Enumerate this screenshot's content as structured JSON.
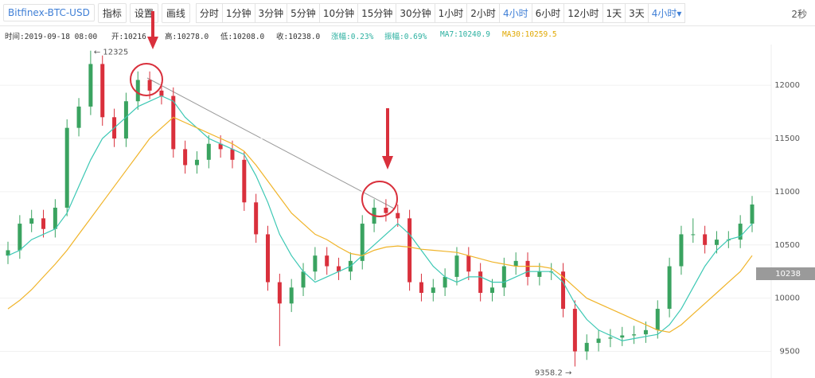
{
  "toolbar": {
    "symbol": "Bitfinex-BTC-USD",
    "buttons": [
      "指标",
      "设置",
      "画线"
    ],
    "intervals": [
      "分时",
      "1分钟",
      "3分钟",
      "5分钟",
      "10分钟",
      "15分钟",
      "30分钟",
      "1小时",
      "2小时",
      "4小时",
      "6小时",
      "12小时",
      "1天",
      "3天"
    ],
    "active_interval": 9,
    "period_select": "4小时▾",
    "refresh": "2秒"
  },
  "info": [
    "时间:2019-09-18 08:00",
    "开:10216",
    "高:10278.0",
    "低:10208.0",
    "收:10238.0",
    "涨幅:0.23%",
    "振幅:0.69%",
    "MA7:10240.9",
    "MA30:10259.5"
  ],
  "chart_data": {
    "type": "candlestick",
    "up_color": "#3aa360",
    "down_color": "#d9303c",
    "open": [
      10400,
      10450,
      10700,
      10750,
      10650,
      10850,
      11600,
      11800,
      12200,
      11700,
      11500,
      11850,
      12050,
      11950,
      11900,
      11400,
      11250,
      11300,
      11450,
      11400,
      11300,
      10900,
      10600,
      10150,
      9950,
      10100,
      10250,
      10400,
      10300,
      10250,
      10350,
      10700,
      10850,
      10800,
      10750,
      10150,
      10050,
      10100,
      10200,
      10400,
      10250,
      10050,
      10100,
      10300,
      10350,
      10200,
      10250,
      10250,
      9900,
      9500,
      9580,
      9620,
      9630,
      9650,
      9660,
      9700,
      9900,
      10300,
      10600,
      10600,
      10500,
      10550,
      10550,
      10700
    ],
    "high": [
      10530,
      10780,
      10830,
      10830,
      10930,
      11680,
      11880,
      12325,
      12280,
      11780,
      11930,
      12130,
      12130,
      12030,
      11980,
      11480,
      11380,
      11530,
      11530,
      11480,
      11380,
      10980,
      10680,
      10230,
      10180,
      10330,
      10480,
      10480,
      10380,
      10430,
      10780,
      10930,
      10930,
      10880,
      10830,
      10230,
      10180,
      10280,
      10480,
      10480,
      10330,
      10180,
      10380,
      10430,
      10430,
      10330,
      10330,
      10330,
      9980,
      9660,
      9700,
      9710,
      9730,
      9740,
      9780,
      9980,
      10380,
      10680,
      10750,
      10680,
      10630,
      10630,
      10780,
      10960
    ],
    "low": [
      10320,
      10370,
      10620,
      10570,
      10570,
      10770,
      11520,
      11720,
      11620,
      11420,
      11420,
      11770,
      11870,
      11820,
      11320,
      11170,
      11170,
      11220,
      11320,
      11220,
      10820,
      10520,
      10070,
      9550,
      9870,
      10020,
      10170,
      10220,
      10170,
      10170,
      10270,
      10620,
      10720,
      10670,
      10070,
      9970,
      9970,
      10020,
      10120,
      10170,
      9970,
      9970,
      10020,
      10220,
      10120,
      10120,
      10170,
      9820,
      9358.2,
      9420,
      9500,
      9540,
      9550,
      9570,
      9580,
      9620,
      9820,
      10220,
      10520,
      10420,
      10420,
      10470,
      10470,
      10620
    ],
    "close": [
      10450,
      10700,
      10750,
      10650,
      10850,
      11600,
      11800,
      12200,
      11700,
      11500,
      11850,
      12050,
      11950,
      11900,
      11400,
      11250,
      11300,
      11450,
      11400,
      11300,
      10900,
      10600,
      10150,
      9950,
      10100,
      10250,
      10400,
      10300,
      10250,
      10350,
      10700,
      10850,
      10800,
      10750,
      10150,
      10050,
      10100,
      10200,
      10400,
      10250,
      10050,
      10100,
      10300,
      10350,
      10200,
      10250,
      10250,
      9900,
      9500,
      9580,
      9620,
      9630,
      9650,
      9660,
      9700,
      9900,
      10300,
      10600,
      10600,
      10500,
      10550,
      10550,
      10700,
      10880
    ],
    "series": [
      {
        "color": "#3cc8b4",
        "values": [
          10400,
          10450,
          10550,
          10600,
          10650,
          10800,
          11050,
          11300,
          11500,
          11600,
          11700,
          11800,
          11850,
          11900,
          11850,
          11700,
          11600,
          11500,
          11450,
          11400,
          11350,
          11150,
          10900,
          10600,
          10400,
          10250,
          10150,
          10200,
          10250,
          10300,
          10400,
          10500,
          10600,
          10700,
          10600,
          10450,
          10300,
          10200,
          10150,
          10200,
          10200,
          10150,
          10150,
          10200,
          10250,
          10250,
          10250,
          10150,
          9950,
          9800,
          9700,
          9650,
          9600,
          9620,
          9640,
          9660,
          9750,
          9900,
          10100,
          10300,
          10450,
          10550,
          10580,
          10700
        ]
      },
      {
        "color": "#f0b429",
        "values": [
          9900,
          9980,
          10080,
          10200,
          10320,
          10450,
          10600,
          10750,
          10900,
          11050,
          11200,
          11350,
          11500,
          11600,
          11700,
          11650,
          11600,
          11550,
          11500,
          11450,
          11380,
          11250,
          11100,
          10950,
          10800,
          10700,
          10600,
          10550,
          10480,
          10420,
          10400,
          10450,
          10480,
          10490,
          10480,
          10460,
          10450,
          10440,
          10430,
          10400,
          10370,
          10340,
          10320,
          10300,
          10300,
          10300,
          10280,
          10200,
          10100,
          10000,
          9950,
          9900,
          9850,
          9800,
          9750,
          9700,
          9680,
          9750,
          9850,
          9950,
          10050,
          10150,
          10250,
          10400
        ]
      }
    ],
    "ylim": [
      9250,
      12390
    ],
    "yticks": [
      9500,
      10000,
      10500,
      11000,
      11500,
      12000
    ],
    "grid": true,
    "annotations": [
      "← 12325",
      "9358.2 →"
    ],
    "last_price": "10238"
  }
}
